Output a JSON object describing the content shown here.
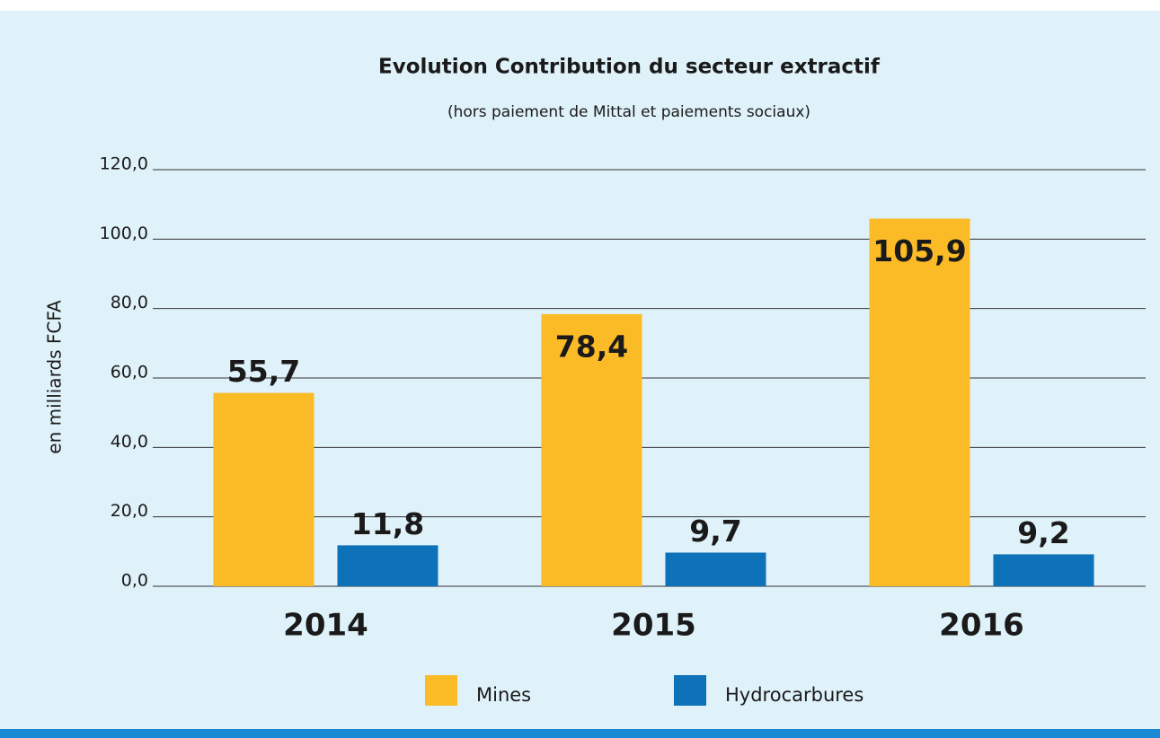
{
  "chart_data": {
    "type": "bar",
    "title": "Evolution Contribution du secteur extractif",
    "subtitle": "(hors paiement de Mittal et paiements sociaux)",
    "y_label": "en milliards FCFA",
    "categories": [
      "2014",
      "2015",
      "2016"
    ],
    "series": [
      {
        "name": "Mines",
        "color": "#fbbb27",
        "values": [
          55.7,
          78.4,
          105.9
        ],
        "value_labels": [
          "55,7",
          "78,4",
          "105,9"
        ]
      },
      {
        "name": "Hydrocarbures",
        "color": "#0e72b9",
        "values": [
          11.8,
          9.7,
          9.2
        ],
        "value_labels": [
          "11,8",
          "9,7",
          "9,2"
        ]
      }
    ],
    "ylim": [
      0,
      120
    ],
    "yticks": [
      {
        "value": 0,
        "label": "0,0"
      },
      {
        "value": 20,
        "label": "20,0"
      },
      {
        "value": 40,
        "label": "40,0"
      },
      {
        "value": 60,
        "label": "60,0"
      },
      {
        "value": 80,
        "label": "80,0"
      },
      {
        "value": 100,
        "label": "100,0"
      },
      {
        "value": 120,
        "label": "120,0"
      }
    ],
    "grid": true,
    "legend": "bottom"
  }
}
